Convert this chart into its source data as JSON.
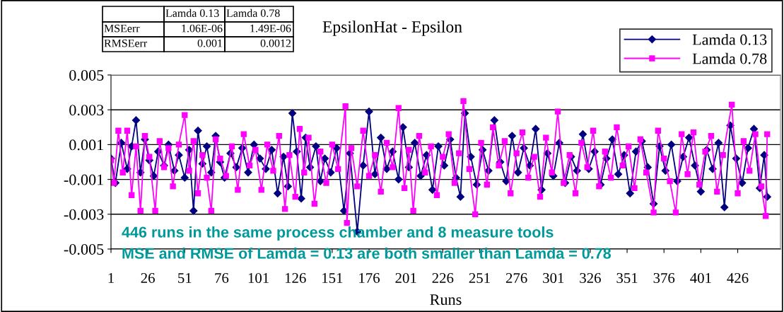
{
  "chart_data": {
    "type": "line",
    "title": "EpsilonHat - Epsilon",
    "xlabel": "Runs",
    "annotations": [
      "Lamda 0.13",
      "Lamda 0.78",
      "MSEerr",
      "1.06E-06",
      "1.49E-06",
      "RMSEerr",
      "0.001",
      "0.0012",
      "446 runs in the same process chamber and 8 measure tools",
      "MSE and RMSE of Lamda = 0.13 are both smaller than Lamda = 0.78"
    ],
    "xlim": [
      1,
      455
    ],
    "xticks": [
      1,
      26,
      51,
      76,
      101,
      126,
      151,
      176,
      201,
      226,
      251,
      276,
      301,
      326,
      351,
      376,
      401,
      426
    ],
    "ylim": [
      -0.005,
      0.005
    ],
    "yticks": [
      -0.005,
      -0.003,
      -0.001,
      0.001,
      0.003,
      0.005
    ],
    "grid": "y",
    "legend": "top right",
    "line_style": "solid",
    "series": [
      {
        "name": "Lamda 0.13",
        "color": "#000080",
        "marker": "diamond",
        "x": [
          1,
          4,
          8,
          12,
          15,
          18,
          21,
          24,
          27,
          30,
          33,
          37,
          40,
          44,
          47,
          51,
          54,
          57,
          60,
          63,
          66,
          69,
          72,
          75,
          78,
          82,
          86,
          90,
          94,
          98,
          102,
          106,
          110,
          114,
          118,
          121,
          124,
          127,
          130,
          133,
          136,
          140,
          143,
          146,
          150,
          154,
          159,
          163,
          168,
          172,
          176,
          180,
          184,
          188,
          192,
          196,
          199,
          203,
          207,
          211,
          215,
          219,
          223,
          227,
          231,
          235,
          238,
          241,
          245,
          249,
          253,
          257,
          261,
          265,
          269,
          273,
          277,
          281,
          285,
          289,
          293,
          297,
          301,
          305,
          309,
          313,
          317,
          321,
          325,
          329,
          333,
          337,
          341,
          345,
          349,
          353,
          357,
          361,
          365,
          369,
          373,
          377,
          381,
          385,
          389,
          393,
          397,
          401,
          405,
          409,
          413,
          417,
          421,
          425,
          429,
          433,
          437,
          441,
          444,
          446
        ],
        "values": [
          0.0002,
          -0.0012,
          0.0011,
          -0.0004,
          0.0009,
          0.0024,
          -0.0006,
          0.0013,
          0.0001,
          -0.0008,
          0.0006,
          -0.0002,
          0.001,
          -0.0005,
          0.0004,
          -0.0009,
          0.0007,
          -0.0028,
          0.0018,
          -0.0001,
          0.0009,
          -0.0006,
          0.0015,
          0.0,
          -0.0009,
          0.0005,
          -0.0003,
          0.0008,
          -0.0006,
          0.001,
          0.0002,
          -0.0004,
          0.0007,
          -0.0018,
          0.0003,
          -0.0014,
          0.0028,
          0.0006,
          -0.0021,
          0.0014,
          -0.0003,
          0.0009,
          -0.0011,
          0.0002,
          -0.0006,
          0.0008,
          -0.0028,
          0.0005,
          -0.004,
          -0.0002,
          0.0029,
          -0.0007,
          0.0014,
          -0.0004,
          0.0006,
          -0.001,
          0.002,
          -0.0003,
          0.0011,
          -0.0008,
          0.0004,
          -0.0016,
          0.0009,
          -0.0002,
          0.0013,
          -0.0009,
          -0.002,
          0.0028,
          0.0003,
          -0.0013,
          0.0007,
          -0.0005,
          0.0024,
          0.0,
          -0.0011,
          0.0015,
          -0.0006,
          0.0008,
          -0.0002,
          0.0019,
          -0.0016,
          0.0005,
          -0.0008,
          0.0011,
          -0.0012,
          0.0003,
          -0.0005,
          0.0016,
          -0.0004,
          0.0006,
          -0.0013,
          0.0002,
          0.0013,
          -0.0007,
          0.0004,
          -0.0018,
          0.0006,
          0.0012,
          -0.0003,
          -0.0024,
          0.0009,
          -0.0005,
          0.001,
          -0.0011,
          0.0003,
          0.0014,
          -0.0002,
          -0.0017,
          0.0007,
          -0.0004,
          0.0011,
          -0.0026,
          0.0021,
          0.0002,
          -0.0012,
          0.0008,
          0.0019,
          -0.0015,
          0.0004,
          -0.002
        ]
      },
      {
        "name": "Lamda 0.78",
        "color": "#ff00ff",
        "marker": "square",
        "x": [
          1,
          3,
          6,
          9,
          12,
          15,
          18,
          21,
          24,
          27,
          31,
          34,
          37,
          40,
          43,
          47,
          51,
          54,
          57,
          60,
          63,
          66,
          69,
          72,
          75,
          79,
          83,
          87,
          91,
          95,
          99,
          103,
          107,
          111,
          115,
          119,
          122,
          126,
          129,
          132,
          135,
          139,
          143,
          147,
          151,
          155,
          160,
          161,
          164,
          168,
          172,
          176,
          180,
          184,
          188,
          192,
          196,
          200,
          203,
          206,
          210,
          214,
          218,
          222,
          226,
          230,
          234,
          237,
          240,
          244,
          248,
          252,
          256,
          260,
          264,
          268,
          272,
          276,
          280,
          284,
          288,
          292,
          296,
          300,
          304,
          308,
          312,
          316,
          320,
          324,
          328,
          332,
          336,
          340,
          344,
          348,
          352,
          356,
          360,
          364,
          369,
          372,
          376,
          380,
          384,
          388,
          392,
          396,
          400,
          404,
          408,
          412,
          416,
          422,
          426,
          430,
          434,
          438,
          442,
          445,
          446
        ],
        "values": [
          0.0001,
          -0.0012,
          0.0018,
          -0.0006,
          0.0018,
          -0.0019,
          0.0009,
          -0.0028,
          0.0015,
          0.0003,
          -0.0028,
          0.0012,
          -0.0003,
          0.0008,
          -0.0014,
          0.001,
          0.0027,
          -0.0005,
          0.0012,
          -0.0018,
          0.0004,
          -0.0009,
          -0.0028,
          0.0013,
          0.0002,
          -0.0008,
          0.0009,
          -0.0016,
          0.0016,
          -0.0002,
          0.0007,
          -0.0016,
          0.001,
          -0.0005,
          0.0015,
          -0.0027,
          0.0004,
          -0.002,
          0.0019,
          -0.0006,
          0.0014,
          -0.0024,
          0.0006,
          -0.0012,
          0.001,
          -0.0004,
          0.0032,
          -0.0035,
          0.0008,
          -0.0014,
          0.0018,
          -0.0008,
          0.0004,
          -0.0017,
          0.0011,
          -0.0003,
          0.0031,
          -0.0015,
          0.0007,
          -0.0028,
          0.0015,
          -0.0006,
          0.0009,
          -0.0019,
          0.0003,
          0.0016,
          -0.0012,
          0.0005,
          0.0035,
          -0.0004,
          -0.003,
          0.0011,
          -0.0013,
          0.002,
          -0.0002,
          0.0012,
          -0.0018,
          0.0005,
          0.0017,
          -0.0009,
          0.0003,
          -0.002,
          0.0014,
          -0.0006,
          0.0029,
          -0.0012,
          0.0004,
          -0.0018,
          0.0011,
          -0.0003,
          0.0018,
          -0.0014,
          0.0006,
          -0.0009,
          0.002,
          -0.0002,
          0.0009,
          -0.0015,
          0.0013,
          -0.0006,
          -0.0029,
          0.0018,
          0.0002,
          -0.0011,
          -0.0029,
          0.0016,
          -0.0007,
          0.0017,
          -0.0013,
          0.0006,
          0.0015,
          -0.0017,
          0.0004,
          0.0033,
          -0.0018,
          0.0012,
          -0.0005,
          0.0016,
          -0.0014,
          -0.0031,
          0.0016
        ]
      }
    ]
  }
}
